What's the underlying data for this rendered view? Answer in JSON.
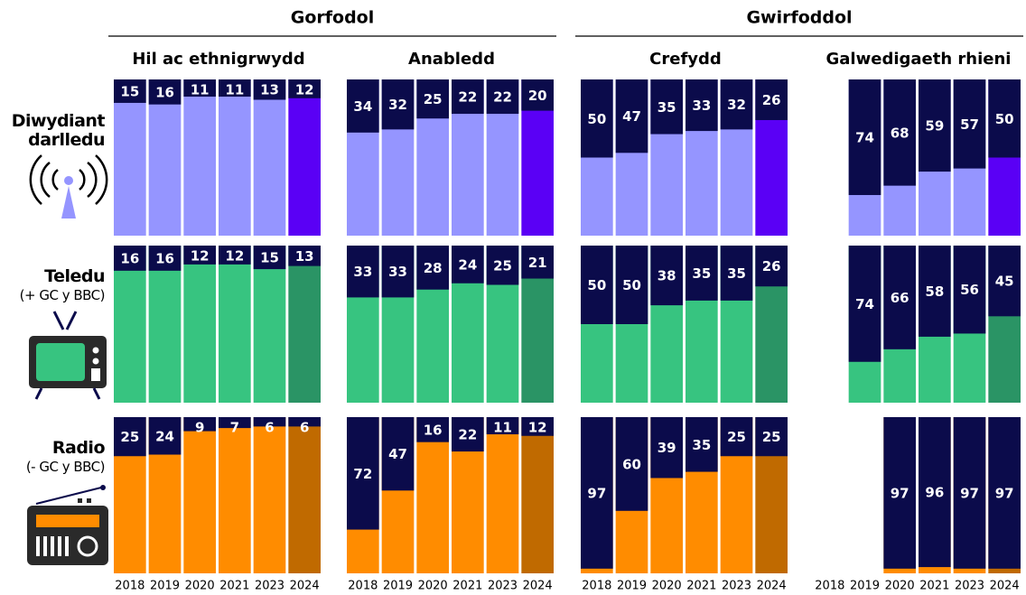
{
  "chart_data": {
    "type": "bar",
    "groups": [
      {
        "title": "Gorfodol",
        "panels": [
          "Hil ac ethnigrwydd",
          "Anabledd"
        ]
      },
      {
        "title": "Gwirfoddol",
        "panels": [
          "Crefydd",
          "Galwedigaeth rhieni"
        ]
      }
    ],
    "categories": [
      "2018",
      "2019",
      "2020",
      "2021",
      "2023",
      "2024"
    ],
    "ylim": [
      0,
      100
    ],
    "top_color": "#0b0b4b",
    "rows": [
      {
        "name": "Diwydiant darlledu",
        "color": "#9595ff",
        "highlight_color": "#5a00f5",
        "values": [
          [
            15,
            16,
            11,
            11,
            13,
            12
          ],
          [
            34,
            32,
            25,
            22,
            22,
            20
          ],
          [
            50,
            47,
            35,
            33,
            32,
            26
          ],
          [
            null,
            74,
            68,
            59,
            57,
            50
          ]
        ]
      },
      {
        "name": "Teledu",
        "subtitle": "(+ GC y BBC)",
        "color": "#37c480",
        "highlight_color": "#2a9465",
        "values": [
          [
            16,
            16,
            12,
            12,
            15,
            13
          ],
          [
            33,
            33,
            28,
            24,
            25,
            21
          ],
          [
            50,
            50,
            38,
            35,
            35,
            26
          ],
          [
            null,
            74,
            66,
            58,
            56,
            45
          ]
        ]
      },
      {
        "name": "Radio",
        "subtitle": "(- GC y BBC)",
        "color": "#ff8c00",
        "highlight_color": "#c06a00",
        "values": [
          [
            25,
            24,
            9,
            7,
            6,
            6
          ],
          [
            72,
            47,
            16,
            22,
            11,
            12
          ],
          [
            97,
            60,
            39,
            35,
            25,
            25
          ],
          [
            null,
            null,
            97,
            96,
            97,
            97
          ]
        ]
      }
    ]
  }
}
